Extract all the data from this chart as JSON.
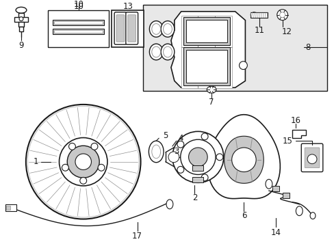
{
  "bg": "#ffffff",
  "lc": "#1a1a1a",
  "gray1": "#c8c8c8",
  "gray2": "#909090",
  "gray3": "#606060",
  "dotfill": "#e8e8e8"
}
